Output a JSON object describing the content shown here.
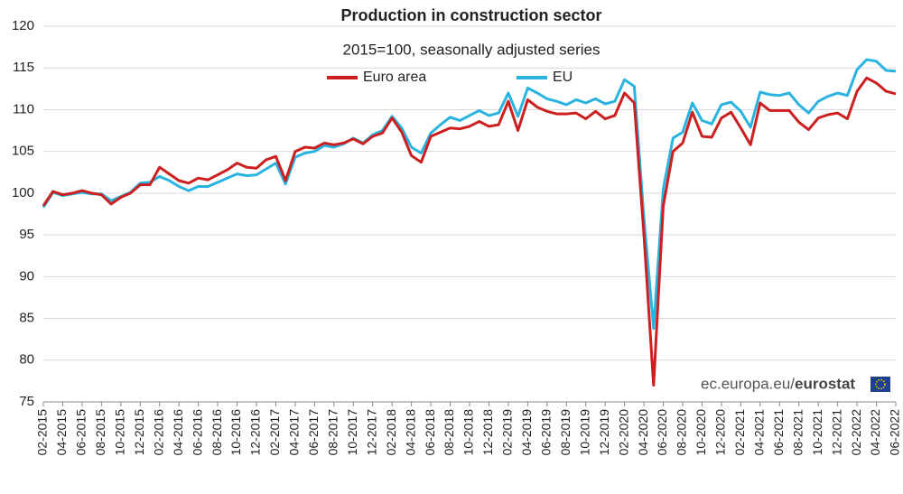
{
  "chart_data": {
    "type": "line",
    "title": "Production in construction sector",
    "subtitle": "2015=100, seasonally adjusted series",
    "source": [
      "ec.europa.eu/",
      "eurostat"
    ],
    "categories": [
      "02-2015",
      null,
      "04-2015",
      null,
      "06-2015",
      null,
      "08-2015",
      null,
      "10-2015",
      null,
      "12-2015",
      null,
      "02-2016",
      null,
      "04-2016",
      null,
      "06-2016",
      null,
      "08-2016",
      null,
      "10-2016",
      null,
      "12-2016",
      null,
      "02-2017",
      null,
      "04-2017",
      null,
      "06-2017",
      null,
      "08-2017",
      null,
      "10-2017",
      null,
      "12-2017",
      null,
      "02-2018",
      null,
      "04-2018",
      null,
      "06-2018",
      null,
      "08-2018",
      null,
      "10-2018",
      null,
      "12-2018",
      null,
      "02-2019",
      null,
      "04-2019",
      null,
      "06-2019",
      null,
      "08-2019",
      null,
      "10-2019",
      null,
      "12-2019",
      null,
      "02-2020",
      null,
      "04-2020",
      null,
      "06-2020",
      null,
      "08-2020",
      null,
      "10-2020",
      null,
      "12-2020",
      null,
      "02-2021",
      null,
      "04-2021",
      null,
      "06-2021",
      null,
      "08-2021",
      null,
      "10-2021",
      null,
      "12-2021",
      null,
      "02-2022",
      null,
      "04-2022",
      null,
      "06-2022"
    ],
    "series": [
      {
        "name": "Euro area",
        "color": "#cc1f1f",
        "values": [
          98.5,
          100.2,
          99.8,
          100.0,
          100.3,
          100.0,
          99.8,
          98.7,
          99.5,
          100.0,
          101.0,
          101.0,
          103.1,
          102.3,
          101.5,
          101.2,
          101.8,
          101.6,
          102.2,
          102.8,
          103.6,
          103.1,
          103.0,
          104.0,
          104.4,
          101.5,
          105.0,
          105.5,
          105.4,
          106.0,
          105.8,
          106.0,
          106.5,
          105.9,
          106.8,
          107.2,
          109.0,
          107.3,
          104.5,
          103.7,
          106.8,
          107.3,
          107.8,
          107.7,
          108.0,
          108.6,
          108.0,
          108.2,
          111.0,
          107.5,
          111.2,
          110.3,
          109.8,
          109.5,
          109.5,
          109.6,
          108.9,
          109.8,
          108.9,
          109.3,
          112.0,
          110.8,
          95.0,
          77.0,
          98.5,
          105.0,
          106.0,
          109.7,
          106.8,
          106.7,
          109.0,
          109.7,
          107.8,
          105.8,
          110.8,
          109.9,
          109.9,
          109.9,
          108.5,
          107.6,
          109.0,
          109.4,
          109.6,
          108.9,
          112.2,
          113.8,
          113.2,
          112.2,
          111.9
        ]
      },
      {
        "name": "EU",
        "color": "#2bb3e0",
        "values": [
          98.3,
          100.1,
          99.7,
          99.9,
          100.1,
          99.9,
          99.9,
          99.1,
          99.6,
          100.1,
          101.2,
          101.3,
          102.0,
          101.5,
          100.8,
          100.3,
          100.8,
          100.8,
          101.3,
          101.8,
          102.3,
          102.1,
          102.2,
          102.9,
          103.6,
          101.1,
          104.3,
          104.8,
          105.0,
          105.7,
          105.5,
          105.9,
          106.6,
          106.0,
          107.0,
          107.5,
          109.2,
          107.8,
          105.5,
          104.8,
          107.2,
          108.2,
          109.1,
          108.7,
          109.3,
          109.9,
          109.3,
          109.6,
          112.0,
          109.2,
          112.6,
          112.0,
          111.3,
          111.0,
          110.6,
          111.2,
          110.8,
          111.3,
          110.7,
          111.0,
          113.6,
          112.8,
          97.0,
          83.8,
          100.5,
          106.6,
          107.3,
          110.8,
          108.7,
          108.3,
          110.6,
          110.9,
          109.8,
          107.9,
          112.1,
          111.8,
          111.7,
          112.0,
          110.6,
          109.6,
          111.0,
          111.6,
          112.0,
          111.7,
          114.8,
          116.0,
          115.8,
          114.7,
          114.6
        ]
      }
    ],
    "ylim": [
      75,
      120
    ],
    "yticks": [
      75,
      80,
      85,
      90,
      95,
      100,
      105,
      110,
      115,
      120
    ],
    "grid": true
  }
}
